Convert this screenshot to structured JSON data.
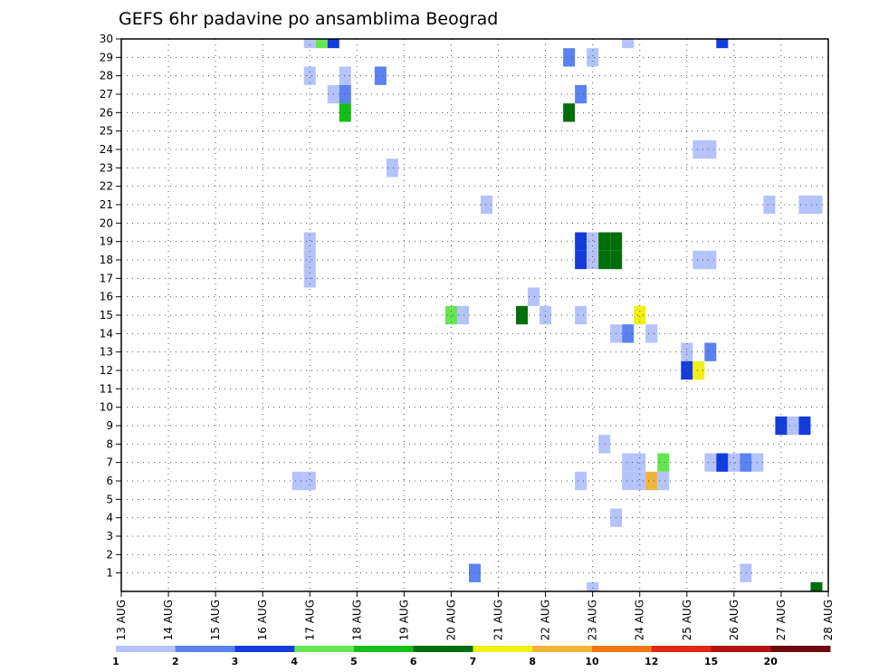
{
  "chart_data": {
    "type": "heatmap",
    "title": "GEFS 6hr padavine po ansamblima Beograd",
    "x_tick_labels": [
      "13 AUG",
      "14 AUG",
      "15 AUG",
      "16 AUG",
      "17 AUG",
      "18 AUG",
      "19 AUG",
      "20 AUG",
      "21 AUG",
      "22 AUG",
      "23 AUG",
      "24 AUG",
      "25 AUG",
      "26 AUG",
      "27 AUG",
      "28 AUG"
    ],
    "x_unit": "6-hour step from 13 AUG 00Z",
    "x_range": [
      0,
      60
    ],
    "y_tick_labels": [
      "1",
      "2",
      "3",
      "4",
      "5",
      "6",
      "7",
      "8",
      "9",
      "10",
      "11",
      "12",
      "13",
      "14",
      "15",
      "16",
      "17",
      "18",
      "19",
      "20",
      "21",
      "22",
      "23",
      "24",
      "25",
      "26",
      "27",
      "28",
      "29",
      "30"
    ],
    "y_range": [
      0,
      30
    ],
    "grid": true,
    "colorbar": {
      "labels": [
        "1",
        "2",
        "3",
        "4",
        "5",
        "6",
        "7",
        "8",
        "10",
        "12",
        "15",
        "20"
      ],
      "colors": [
        "#b4c3fa",
        "#5a82f0",
        "#143cdc",
        "#64e650",
        "#14be14",
        "#006e0a",
        "#f0f014",
        "#f0b43c",
        "#f07814",
        "#dc2814",
        "#b41414",
        "#6e0a0a"
      ]
    },
    "cells": [
      {
        "x": 16,
        "y": 30,
        "c": 0
      },
      {
        "x": 17,
        "y": 30,
        "c": 3
      },
      {
        "x": 18,
        "y": 30,
        "c": 2
      },
      {
        "x": 43,
        "y": 30,
        "c": 0
      },
      {
        "x": 51,
        "y": 30,
        "c": 2
      },
      {
        "x": 38,
        "y": 29,
        "c": 1
      },
      {
        "x": 40,
        "y": 29,
        "c": 0
      },
      {
        "x": 16,
        "y": 28,
        "c": 0
      },
      {
        "x": 19,
        "y": 28,
        "c": 0
      },
      {
        "x": 22,
        "y": 28,
        "c": 1
      },
      {
        "x": 18,
        "y": 27,
        "c": 0
      },
      {
        "x": 19,
        "y": 27,
        "c": 1
      },
      {
        "x": 39,
        "y": 27,
        "c": 1
      },
      {
        "x": 19,
        "y": 26,
        "c": 4
      },
      {
        "x": 38,
        "y": 26,
        "c": 5
      },
      {
        "x": 49,
        "y": 24,
        "c": 0
      },
      {
        "x": 50,
        "y": 24,
        "c": 0
      },
      {
        "x": 23,
        "y": 23,
        "c": 0
      },
      {
        "x": 31,
        "y": 21,
        "c": 0
      },
      {
        "x": 55,
        "y": 21,
        "c": 0
      },
      {
        "x": 58,
        "y": 21,
        "c": 0
      },
      {
        "x": 59,
        "y": 21,
        "c": 0
      },
      {
        "x": 39,
        "y": 19,
        "c": 2
      },
      {
        "x": 40,
        "y": 19,
        "c": 0
      },
      {
        "x": 41,
        "y": 19,
        "c": 5
      },
      {
        "x": 42,
        "y": 19,
        "c": 5
      },
      {
        "x": 16,
        "y": 19,
        "c": 0
      },
      {
        "x": 16,
        "y": 18,
        "c": 0
      },
      {
        "x": 16,
        "y": 17,
        "c": 0
      },
      {
        "x": 39,
        "y": 18,
        "c": 2
      },
      {
        "x": 40,
        "y": 18,
        "c": 0
      },
      {
        "x": 41,
        "y": 18,
        "c": 5
      },
      {
        "x": 42,
        "y": 18,
        "c": 5
      },
      {
        "x": 49,
        "y": 18,
        "c": 0
      },
      {
        "x": 50,
        "y": 18,
        "c": 0
      },
      {
        "x": 35,
        "y": 16,
        "c": 0
      },
      {
        "x": 28,
        "y": 15,
        "c": 3
      },
      {
        "x": 29,
        "y": 15,
        "c": 0
      },
      {
        "x": 34,
        "y": 15,
        "c": 5
      },
      {
        "x": 36,
        "y": 15,
        "c": 0
      },
      {
        "x": 39,
        "y": 15,
        "c": 0
      },
      {
        "x": 44,
        "y": 15,
        "c": 6
      },
      {
        "x": 42,
        "y": 14,
        "c": 0
      },
      {
        "x": 43,
        "y": 14,
        "c": 1
      },
      {
        "x": 45,
        "y": 14,
        "c": 0
      },
      {
        "x": 48,
        "y": 13,
        "c": 0
      },
      {
        "x": 50,
        "y": 13,
        "c": 1
      },
      {
        "x": 48,
        "y": 12,
        "c": 2
      },
      {
        "x": 49,
        "y": 12,
        "c": 6
      },
      {
        "x": 56,
        "y": 9,
        "c": 2
      },
      {
        "x": 57,
        "y": 9,
        "c": 0
      },
      {
        "x": 58,
        "y": 9,
        "c": 2
      },
      {
        "x": 41,
        "y": 8,
        "c": 0
      },
      {
        "x": 43,
        "y": 7,
        "c": 0
      },
      {
        "x": 44,
        "y": 7,
        "c": 0
      },
      {
        "x": 46,
        "y": 7,
        "c": 3
      },
      {
        "x": 50,
        "y": 7,
        "c": 0
      },
      {
        "x": 51,
        "y": 7,
        "c": 2
      },
      {
        "x": 52,
        "y": 7,
        "c": 0
      },
      {
        "x": 53,
        "y": 7,
        "c": 1
      },
      {
        "x": 54,
        "y": 7,
        "c": 0
      },
      {
        "x": 15,
        "y": 6,
        "c": 0
      },
      {
        "x": 16,
        "y": 6,
        "c": 0
      },
      {
        "x": 39,
        "y": 6,
        "c": 0
      },
      {
        "x": 43,
        "y": 6,
        "c": 0
      },
      {
        "x": 44,
        "y": 6,
        "c": 0
      },
      {
        "x": 45,
        "y": 6,
        "c": 7
      },
      {
        "x": 46,
        "y": 6,
        "c": 0
      },
      {
        "x": 42,
        "y": 4,
        "c": 0
      },
      {
        "x": 30,
        "y": 1,
        "c": 1
      },
      {
        "x": 53,
        "y": 1,
        "c": 0
      },
      {
        "x": 40,
        "y": 0,
        "c": 0
      },
      {
        "x": 59,
        "y": 0,
        "c": 5
      }
    ]
  }
}
